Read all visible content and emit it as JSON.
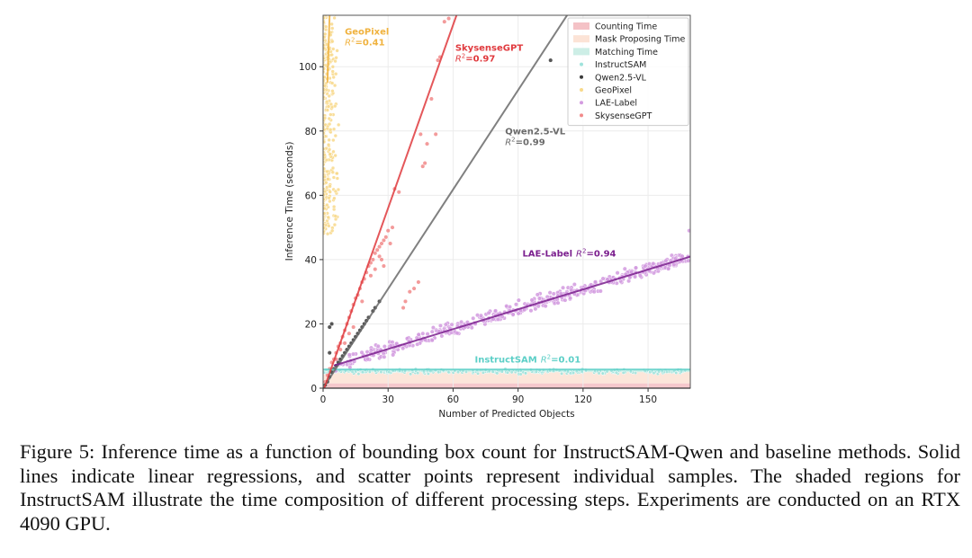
{
  "chart_data": {
    "type": "scatter",
    "title": "",
    "xlabel": "Number of Predicted Objects",
    "ylabel": "Inference Time (seconds)",
    "xlim": [
      0,
      169.5
    ],
    "ylim": [
      0,
      116
    ],
    "xticks": [
      0,
      30,
      60,
      90,
      120,
      150
    ],
    "yticks": [
      0,
      20,
      40,
      60,
      80,
      100
    ],
    "grid": true,
    "legend_position": "top-right",
    "shaded_regions": [
      {
        "name": "Counting Time",
        "from": 0,
        "to": 1.5,
        "color": "#f4c2c6"
      },
      {
        "name": "Mask Proposing Time",
        "from": 1.5,
        "to": 5.0,
        "color": "#fce3d6"
      },
      {
        "name": "Matching Time",
        "from": 5.0,
        "to": 5.8,
        "color": "#cdeee6"
      }
    ],
    "series": [
      {
        "name": "InstructSAM",
        "color": "#5ccfc7",
        "point_color": "#9fe3dc",
        "fit": {
          "slope": 0.0,
          "intercept": 5.8,
          "x_range": [
            0,
            169.5
          ]
        },
        "r2": "0.01",
        "annotation": {
          "text": "InstructSAM",
          "x": 70,
          "y": 8
        }
      },
      {
        "name": "Qwen2.5-VL",
        "color": "#6b6b6b",
        "point_color": "#3a3a3a",
        "fit": {
          "slope": 1.03,
          "intercept": 0.0,
          "x_range": [
            0,
            113
          ]
        },
        "r2": "0.99",
        "annotation": {
          "text": "Qwen2.5-VL",
          "x": 84,
          "y": 79
        }
      },
      {
        "name": "GeoPixel",
        "color": "#f0b23e",
        "point_color": "#f8d98a",
        "fit": {
          "slope": 21.0,
          "intercept": 53.0,
          "x_range": [
            2.0,
            3.0
          ]
        },
        "r2": "0.41",
        "annotation": {
          "text": "GeoPixel",
          "x": 10,
          "y": 110
        }
      },
      {
        "name": "LAE-Label",
        "color": "#7b1f8e",
        "point_color": "#d39be0",
        "fit": {
          "slope": 0.206,
          "intercept": 6.0,
          "x_range": [
            5,
            169.5
          ]
        },
        "r2": "0.94",
        "annotation": {
          "text": "LAE-Label",
          "x": 92,
          "y": 41
        }
      },
      {
        "name": "SkysenseGPT",
        "color": "#e03a3e",
        "point_color": "#f28a8a",
        "fit": {
          "slope": 1.9,
          "intercept": -1.0,
          "x_range": [
            0,
            61.6
          ]
        },
        "r2": "0.97",
        "annotation": {
          "text": "SkysenseGPT",
          "x": 61,
          "y": 105
        }
      }
    ],
    "sample_points": {
      "Qwen2.5-VL": [
        [
          1,
          1
        ],
        [
          2,
          2
        ],
        [
          3,
          3.5
        ],
        [
          4,
          5
        ],
        [
          5,
          6
        ],
        [
          6,
          7
        ],
        [
          7,
          8
        ],
        [
          8,
          9
        ],
        [
          9,
          10
        ],
        [
          10,
          11
        ],
        [
          11,
          12
        ],
        [
          12,
          13
        ],
        [
          13,
          14
        ],
        [
          14,
          15
        ],
        [
          15,
          16
        ],
        [
          16,
          17
        ],
        [
          17,
          18
        ],
        [
          18,
          19
        ],
        [
          19,
          20
        ],
        [
          20,
          21
        ],
        [
          21,
          22
        ],
        [
          23,
          24
        ],
        [
          24,
          25
        ],
        [
          26,
          27
        ],
        [
          3,
          19
        ],
        [
          4,
          20
        ],
        [
          3,
          11
        ],
        [
          105,
          102
        ]
      ],
      "SkysenseGPT": [
        [
          1,
          2
        ],
        [
          2,
          4
        ],
        [
          3,
          6
        ],
        [
          4,
          8
        ],
        [
          5,
          9
        ],
        [
          6,
          11
        ],
        [
          7,
          13
        ],
        [
          8,
          14
        ],
        [
          9,
          16
        ],
        [
          10,
          18
        ],
        [
          11,
          20
        ],
        [
          12,
          22
        ],
        [
          13,
          24
        ],
        [
          14,
          26
        ],
        [
          15,
          28
        ],
        [
          16,
          29
        ],
        [
          17,
          31
        ],
        [
          18,
          33
        ],
        [
          19,
          34
        ],
        [
          20,
          36
        ],
        [
          21,
          38
        ],
        [
          22,
          39
        ],
        [
          23,
          40
        ],
        [
          24,
          42
        ],
        [
          25,
          43
        ],
        [
          26,
          44
        ],
        [
          27,
          45
        ],
        [
          28,
          46
        ],
        [
          29,
          47
        ],
        [
          30,
          49
        ],
        [
          31,
          45
        ],
        [
          32,
          50
        ],
        [
          33,
          62
        ],
        [
          35,
          61
        ],
        [
          37,
          25
        ],
        [
          38,
          27
        ],
        [
          40,
          30
        ],
        [
          42,
          31
        ],
        [
          44,
          33
        ],
        [
          45,
          79
        ],
        [
          46,
          69
        ],
        [
          47,
          70
        ],
        [
          48,
          76
        ],
        [
          50,
          90
        ],
        [
          52,
          79
        ],
        [
          53,
          102
        ],
        [
          54,
          103
        ],
        [
          56,
          114
        ],
        [
          58,
          115
        ],
        [
          12,
          17
        ],
        [
          14,
          19
        ],
        [
          18,
          27
        ],
        [
          22,
          35
        ],
        [
          26,
          41
        ],
        [
          28,
          38
        ],
        [
          10,
          14
        ],
        [
          8,
          12
        ],
        [
          6,
          9
        ],
        [
          24,
          37
        ],
        [
          27,
          40
        ]
      ],
      "GeoPixel": "dense vertical band at x≈0–8 spanning y≈48–116",
      "LAE-Label": "~450 points scattered around fit line x≈5–169, plus outlier (169,49)",
      "InstructSAM": "~300 points near y≈4.5–7 for x≈0–169"
    }
  },
  "legend": {
    "items": [
      {
        "label": "Counting Time",
        "kind": "patch",
        "color": "#f4c2c6"
      },
      {
        "label": "Mask Proposing Time",
        "kind": "patch",
        "color": "#fce3d6"
      },
      {
        "label": "Matching Time",
        "kind": "patch",
        "color": "#cdeee6"
      },
      {
        "label": "InstructSAM",
        "kind": "dot",
        "color": "#9fe3dc"
      },
      {
        "label": "Qwen2.5-VL",
        "kind": "dot",
        "color": "#3a3a3a"
      },
      {
        "label": "GeoPixel",
        "kind": "dot",
        "color": "#f8d98a"
      },
      {
        "label": "LAE-Label",
        "kind": "dot",
        "color": "#d39be0"
      },
      {
        "label": "SkysenseGPT",
        "kind": "dot",
        "color": "#f28a8a"
      }
    ]
  },
  "caption": "Figure 5: Inference time as a function of bounding box count for InstructSAM-Qwen and baseline methods. Solid lines indicate linear regressions, and scatter points represent individual samples. The shaded regions for InstructSAM illustrate the time composition of different processing steps. Experiments are conducted on an RTX 4090 GPU."
}
